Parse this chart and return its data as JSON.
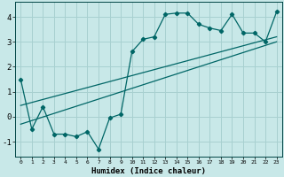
{
  "xlabel": "Humidex (Indice chaleur)",
  "ylabel": "",
  "bg_color": "#c8e8e8",
  "grid_color": "#a8d0d0",
  "line_color": "#006666",
  "xlim": [
    -0.5,
    23.5
  ],
  "ylim": [
    -1.6,
    4.6
  ],
  "xticks": [
    0,
    1,
    2,
    3,
    4,
    5,
    6,
    7,
    8,
    9,
    10,
    11,
    12,
    13,
    14,
    15,
    16,
    17,
    18,
    19,
    20,
    21,
    22,
    23
  ],
  "yticks": [
    -1,
    0,
    1,
    2,
    3,
    4
  ],
  "scatter_x": [
    0,
    1,
    2,
    3,
    4,
    5,
    6,
    7,
    8,
    9,
    10,
    11,
    12,
    13,
    14,
    15,
    16,
    17,
    18,
    19,
    20,
    21,
    22,
    23
  ],
  "scatter_y": [
    1.5,
    -0.5,
    0.4,
    -0.7,
    -0.7,
    -0.8,
    -0.6,
    -1.3,
    -0.05,
    0.1,
    2.6,
    3.1,
    3.2,
    4.1,
    4.15,
    4.15,
    3.7,
    3.55,
    3.45,
    4.1,
    3.35,
    3.35,
    3.0,
    4.2
  ],
  "line1_x": [
    0,
    23
  ],
  "line1_y": [
    0.45,
    3.2
  ],
  "line2_x": [
    0,
    23
  ],
  "line2_y": [
    -0.3,
    3.0
  ]
}
